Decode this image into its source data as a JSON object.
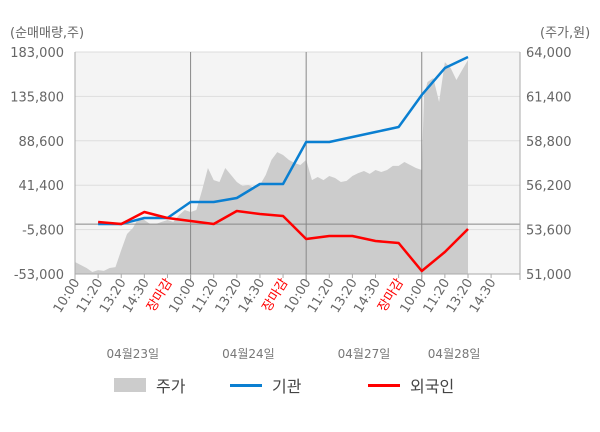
{
  "chart_data": {
    "type": "line",
    "left_axis_title": "(순매매량,주)",
    "right_axis_title": "(주가,원)",
    "left_ticks": [
      "183,000",
      "135,800",
      "88,600",
      "41,400",
      "-5,800",
      "-53,000"
    ],
    "left_tick_values": [
      183000,
      135800,
      88600,
      41400,
      -5800,
      -53000
    ],
    "right_ticks": [
      "64,000",
      "61,400",
      "58,800",
      "56,200",
      "53,600",
      "51,000"
    ],
    "right_tick_values": [
      64000,
      61400,
      58800,
      56200,
      53600,
      51000
    ],
    "left_ylim": [
      -53000,
      183000
    ],
    "right_ylim": [
      51000,
      64000
    ],
    "x_range": [
      0,
      385
    ],
    "x_tick_labels": [
      {
        "x": 0,
        "label": "10:00",
        "close": false
      },
      {
        "x": 20,
        "label": "11:20",
        "close": false
      },
      {
        "x": 40,
        "label": "13:20",
        "close": false
      },
      {
        "x": 60,
        "label": "14:30",
        "close": false
      },
      {
        "x": 80,
        "label": "장마감",
        "close": true
      },
      {
        "x": 100,
        "label": "10:00",
        "close": false
      },
      {
        "x": 120,
        "label": "11:20",
        "close": false
      },
      {
        "x": 140,
        "label": "13:20",
        "close": false
      },
      {
        "x": 160,
        "label": "14:30",
        "close": false
      },
      {
        "x": 180,
        "label": "장마감",
        "close": true
      },
      {
        "x": 200,
        "label": "10:00",
        "close": false
      },
      {
        "x": 220,
        "label": "11:20",
        "close": false
      },
      {
        "x": 240,
        "label": "13:20",
        "close": false
      },
      {
        "x": 260,
        "label": "14:30",
        "close": false
      },
      {
        "x": 280,
        "label": "장마감",
        "close": true
      },
      {
        "x": 300,
        "label": "10:00",
        "close": false
      },
      {
        "x": 320,
        "label": "11:20",
        "close": false
      },
      {
        "x": 340,
        "label": "13:20",
        "close": false
      },
      {
        "x": 360,
        "label": "14:30",
        "close": false
      }
    ],
    "day_separators": [
      100,
      200,
      300
    ],
    "dates": [
      {
        "x": 50,
        "label": "04월23일"
      },
      {
        "x": 150,
        "label": "04월24일"
      },
      {
        "x": 250,
        "label": "04월27일"
      },
      {
        "x": 328,
        "label": "04월28일"
      }
    ],
    "series": [
      {
        "name": "주가",
        "type": "area",
        "axis": "right",
        "color": "#cccccc",
        "x": [
          0,
          5,
          10,
          15,
          20,
          25,
          30,
          35,
          40,
          45,
          50,
          55,
          60,
          65,
          70,
          75,
          80,
          85,
          90,
          95,
          100,
          105,
          110,
          115,
          120,
          125,
          130,
          135,
          140,
          145,
          150,
          155,
          160,
          165,
          170,
          175,
          180,
          185,
          190,
          195,
          200,
          205,
          210,
          215,
          220,
          225,
          230,
          235,
          240,
          245,
          250,
          255,
          260,
          265,
          270,
          275,
          280,
          285,
          290,
          295,
          300,
          302,
          305,
          310,
          315,
          320,
          325,
          330,
          335,
          340
        ],
        "values": [
          51700,
          51530,
          51350,
          51120,
          51230,
          51180,
          51350,
          51400,
          52400,
          53340,
          53690,
          54280,
          54160,
          53930,
          53930,
          54050,
          54160,
          54050,
          54450,
          54750,
          54630,
          54750,
          55920,
          57210,
          56500,
          56390,
          57210,
          56800,
          56390,
          56150,
          56210,
          56040,
          56210,
          56800,
          57680,
          58140,
          57970,
          57680,
          57500,
          57380,
          57680,
          56500,
          56680,
          56500,
          56740,
          56620,
          56390,
          56450,
          56740,
          56910,
          57030,
          56860,
          57090,
          56970,
          57090,
          57330,
          57330,
          57560,
          57380,
          57210,
          57090,
          61500,
          62240,
          62480,
          61070,
          63410,
          63060,
          62360,
          62950,
          63530
        ]
      },
      {
        "name": "기관",
        "type": "line",
        "axis": "left",
        "color": "#0a7fd1",
        "x": [
          20,
          40,
          60,
          80,
          100,
          120,
          140,
          160,
          180,
          200,
          220,
          240,
          260,
          280,
          300,
          320,
          340
        ],
        "values": [
          150,
          150,
          6530,
          6530,
          23540,
          23540,
          27800,
          42670,
          42670,
          87320,
          87320,
          92640,
          97950,
          103270,
          137290,
          165990,
          177690
        ]
      },
      {
        "name": "외국인",
        "type": "line",
        "axis": "left",
        "color": "#ff0000",
        "x": [
          20,
          40,
          60,
          80,
          100,
          120,
          140,
          160,
          180,
          200,
          220,
          240,
          260,
          280,
          300,
          320,
          340
        ],
        "values": [
          2280,
          150,
          12900,
          6530,
          3340,
          150,
          13970,
          10780,
          8650,
          -15800,
          -12600,
          -12600,
          -17920,
          -20050,
          -49820,
          -29620,
          -5170
        ]
      }
    ],
    "legend": [
      {
        "label": "주가",
        "color": "#cccccc",
        "kind": "box"
      },
      {
        "label": "기관",
        "color": "#0a7fd1",
        "kind": "line"
      },
      {
        "label": "외국인",
        "color": "#ff0000",
        "kind": "line"
      }
    ]
  }
}
